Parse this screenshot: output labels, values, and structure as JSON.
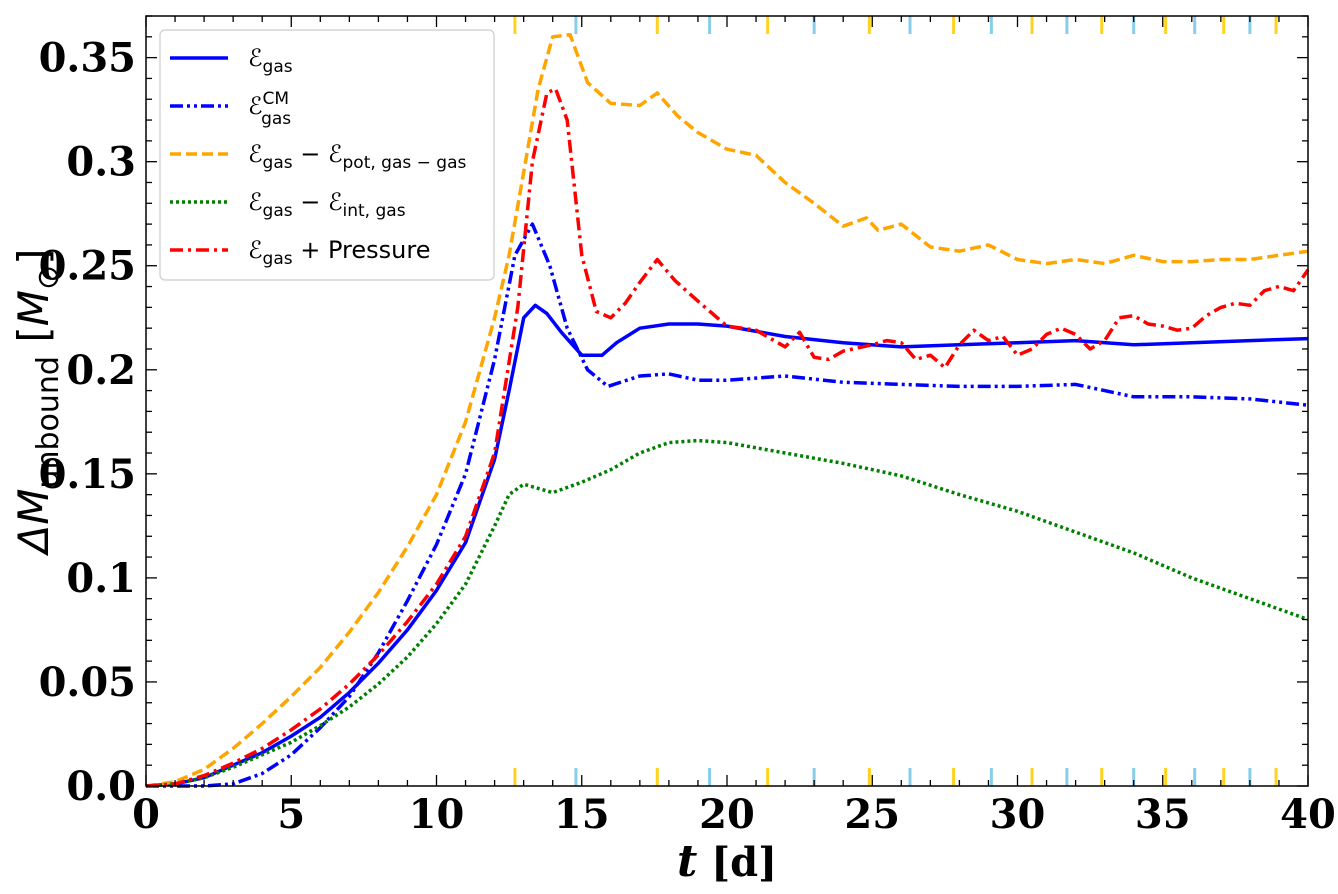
{
  "chart_data": {
    "type": "line",
    "xlabel": {
      "italic": "t",
      "unit": "[d]"
    },
    "ylabel": {
      "base": "ΔM",
      "sub": "unbound",
      "unit_open": "[",
      "unit": "M",
      "unit_sub": "⊙",
      "unit_close": "]"
    },
    "xlim": [
      0,
      40
    ],
    "ylim": [
      0,
      0.37
    ],
    "xticks": [
      0,
      5,
      10,
      15,
      20,
      25,
      30,
      35,
      40
    ],
    "xtick_labels": [
      "0",
      "5",
      "10",
      "15",
      "20",
      "25",
      "30",
      "35",
      "40"
    ],
    "yticks": [
      0,
      0.05,
      0.1,
      0.15,
      0.2,
      0.25,
      0.3,
      0.35
    ],
    "ytick_labels": [
      "0.0",
      "0.05",
      "0.1",
      "0.15",
      "0.2",
      "0.25",
      "0.3",
      "0.35"
    ],
    "grid": false,
    "legend_position": "top-left",
    "series": [
      {
        "legend": {
          "main": "ℰ",
          "sub": "gas"
        },
        "color": "#0000ff",
        "dash": "solid",
        "x": [
          0,
          1,
          2,
          3,
          4,
          5,
          6,
          7,
          8,
          9,
          10,
          11,
          12,
          12.5,
          13,
          13.4,
          13.8,
          14.3,
          15,
          15.7,
          16.2,
          17,
          18,
          19,
          20,
          22,
          24,
          26,
          28,
          30,
          32,
          34,
          36,
          38,
          40
        ],
        "y": [
          0,
          0.001,
          0.004,
          0.01,
          0.016,
          0.024,
          0.033,
          0.045,
          0.059,
          0.075,
          0.094,
          0.117,
          0.157,
          0.19,
          0.225,
          0.231,
          0.227,
          0.218,
          0.207,
          0.207,
          0.213,
          0.22,
          0.222,
          0.222,
          0.221,
          0.216,
          0.213,
          0.211,
          0.212,
          0.213,
          0.214,
          0.212,
          0.213,
          0.214,
          0.215
        ]
      },
      {
        "legend": {
          "main": "ℰ",
          "sub": "gas",
          "sup": "CM"
        },
        "color": "#0000ff",
        "dash": "dashdotdot",
        "x": [
          0,
          1,
          2,
          3,
          4,
          5,
          6,
          7,
          8,
          9,
          10,
          11,
          12,
          12.7,
          13.3,
          13.9,
          14.5,
          15.2,
          15.9,
          17,
          18,
          19,
          20,
          22,
          24,
          26,
          28,
          30,
          32,
          34,
          36,
          38,
          40
        ],
        "y": [
          0,
          0,
          0,
          0.001,
          0.006,
          0.015,
          0.028,
          0.043,
          0.064,
          0.089,
          0.116,
          0.15,
          0.205,
          0.255,
          0.27,
          0.25,
          0.22,
          0.2,
          0.192,
          0.197,
          0.198,
          0.195,
          0.195,
          0.197,
          0.194,
          0.193,
          0.192,
          0.192,
          0.193,
          0.187,
          0.187,
          0.186,
          0.183
        ]
      },
      {
        "legend": {
          "main": "ℰ",
          "sub": "gas",
          "minus_main": "ℰ",
          "minus_sub": "pot, gas − gas"
        },
        "color": "#ffa500",
        "dash": "dashed",
        "x": [
          0,
          1,
          2,
          3,
          4,
          5,
          6,
          7,
          8,
          9,
          10,
          11,
          12,
          12.5,
          13,
          13.5,
          14,
          14.6,
          15.2,
          16,
          17,
          17.6,
          18.3,
          19,
          20,
          21,
          22,
          23,
          24,
          24.8,
          25.2,
          26,
          27,
          28,
          29,
          30,
          31,
          32,
          33,
          34,
          35,
          36,
          37,
          38,
          39,
          40
        ],
        "y": [
          0,
          0.002,
          0.008,
          0.018,
          0.03,
          0.043,
          0.057,
          0.074,
          0.093,
          0.115,
          0.14,
          0.175,
          0.225,
          0.255,
          0.295,
          0.335,
          0.36,
          0.361,
          0.338,
          0.328,
          0.327,
          0.333,
          0.322,
          0.314,
          0.306,
          0.303,
          0.29,
          0.28,
          0.269,
          0.273,
          0.267,
          0.27,
          0.259,
          0.257,
          0.26,
          0.253,
          0.251,
          0.253,
          0.251,
          0.255,
          0.252,
          0.252,
          0.253,
          0.253,
          0.255,
          0.257
        ]
      },
      {
        "legend": {
          "main": "ℰ",
          "sub": "gas",
          "minus_main": "ℰ",
          "minus_sub": "int, gas"
        },
        "color": "#008000",
        "dash": "dotted",
        "x": [
          0,
          1,
          2,
          3,
          4,
          5,
          6,
          7,
          8,
          9,
          10,
          11,
          12,
          12.5,
          13,
          13.5,
          14,
          15,
          16,
          17,
          18,
          19,
          20,
          22,
          24,
          26,
          28,
          30,
          32,
          34,
          36,
          38,
          40
        ],
        "y": [
          0,
          0.001,
          0.004,
          0.009,
          0.015,
          0.021,
          0.029,
          0.038,
          0.049,
          0.062,
          0.078,
          0.097,
          0.125,
          0.14,
          0.145,
          0.143,
          0.141,
          0.146,
          0.152,
          0.16,
          0.165,
          0.166,
          0.165,
          0.16,
          0.155,
          0.149,
          0.14,
          0.132,
          0.122,
          0.112,
          0.1,
          0.09,
          0.08
        ]
      },
      {
        "legend": {
          "main": "ℰ",
          "sub": "gas",
          "suffix": " +  Pressure"
        },
        "color": "#ff0000",
        "dash": "dashdot",
        "x": [
          0,
          1,
          2,
          3,
          4,
          5,
          6,
          7,
          8,
          9,
          10,
          11,
          12,
          12.8,
          13.3,
          13.8,
          14.1,
          14.5,
          15,
          15.5,
          16,
          16.5,
          17,
          17.6,
          18.2,
          19,
          20,
          21,
          22,
          22.5,
          23,
          23.5,
          24,
          25,
          25.5,
          26,
          26.5,
          27,
          27.5,
          28,
          28.5,
          29,
          29.5,
          30,
          30.5,
          31,
          31.5,
          32,
          32.5,
          33,
          33.5,
          34,
          34.5,
          35,
          35.5,
          36,
          36.5,
          37,
          37.5,
          38,
          38.5,
          39,
          39.5,
          40
        ],
        "y": [
          0,
          0.001,
          0.005,
          0.011,
          0.018,
          0.027,
          0.037,
          0.049,
          0.063,
          0.079,
          0.097,
          0.12,
          0.16,
          0.23,
          0.3,
          0.333,
          0.335,
          0.32,
          0.255,
          0.228,
          0.225,
          0.232,
          0.242,
          0.253,
          0.243,
          0.233,
          0.221,
          0.219,
          0.211,
          0.218,
          0.206,
          0.205,
          0.209,
          0.212,
          0.214,
          0.213,
          0.205,
          0.207,
          0.201,
          0.212,
          0.219,
          0.214,
          0.216,
          0.207,
          0.21,
          0.217,
          0.22,
          0.217,
          0.21,
          0.214,
          0.225,
          0.226,
          0.222,
          0.221,
          0.219,
          0.22,
          0.226,
          0.23,
          0.232,
          0.231,
          0.238,
          0.24,
          0.238,
          0.248
        ]
      }
    ],
    "event_markers": [
      {
        "x": 12.7,
        "color": "#ffd21f"
      },
      {
        "x": 14.8,
        "color": "#87ceeb"
      },
      {
        "x": 17.6,
        "color": "#ffd21f"
      },
      {
        "x": 19.4,
        "color": "#87ceeb"
      },
      {
        "x": 21.4,
        "color": "#ffd21f"
      },
      {
        "x": 23.0,
        "color": "#87ceeb"
      },
      {
        "x": 24.9,
        "color": "#ffd21f"
      },
      {
        "x": 26.3,
        "color": "#87ceeb"
      },
      {
        "x": 27.8,
        "color": "#ffd21f"
      },
      {
        "x": 29.1,
        "color": "#87ceeb"
      },
      {
        "x": 30.5,
        "color": "#ffd21f"
      },
      {
        "x": 31.7,
        "color": "#87ceeb"
      },
      {
        "x": 32.9,
        "color": "#ffd21f"
      },
      {
        "x": 34.0,
        "color": "#87ceeb"
      },
      {
        "x": 35.1,
        "color": "#ffd21f"
      },
      {
        "x": 36.1,
        "color": "#87ceeb"
      },
      {
        "x": 37.1,
        "color": "#ffd21f"
      },
      {
        "x": 38.0,
        "color": "#87ceeb"
      },
      {
        "x": 38.9,
        "color": "#ffd21f"
      }
    ]
  }
}
